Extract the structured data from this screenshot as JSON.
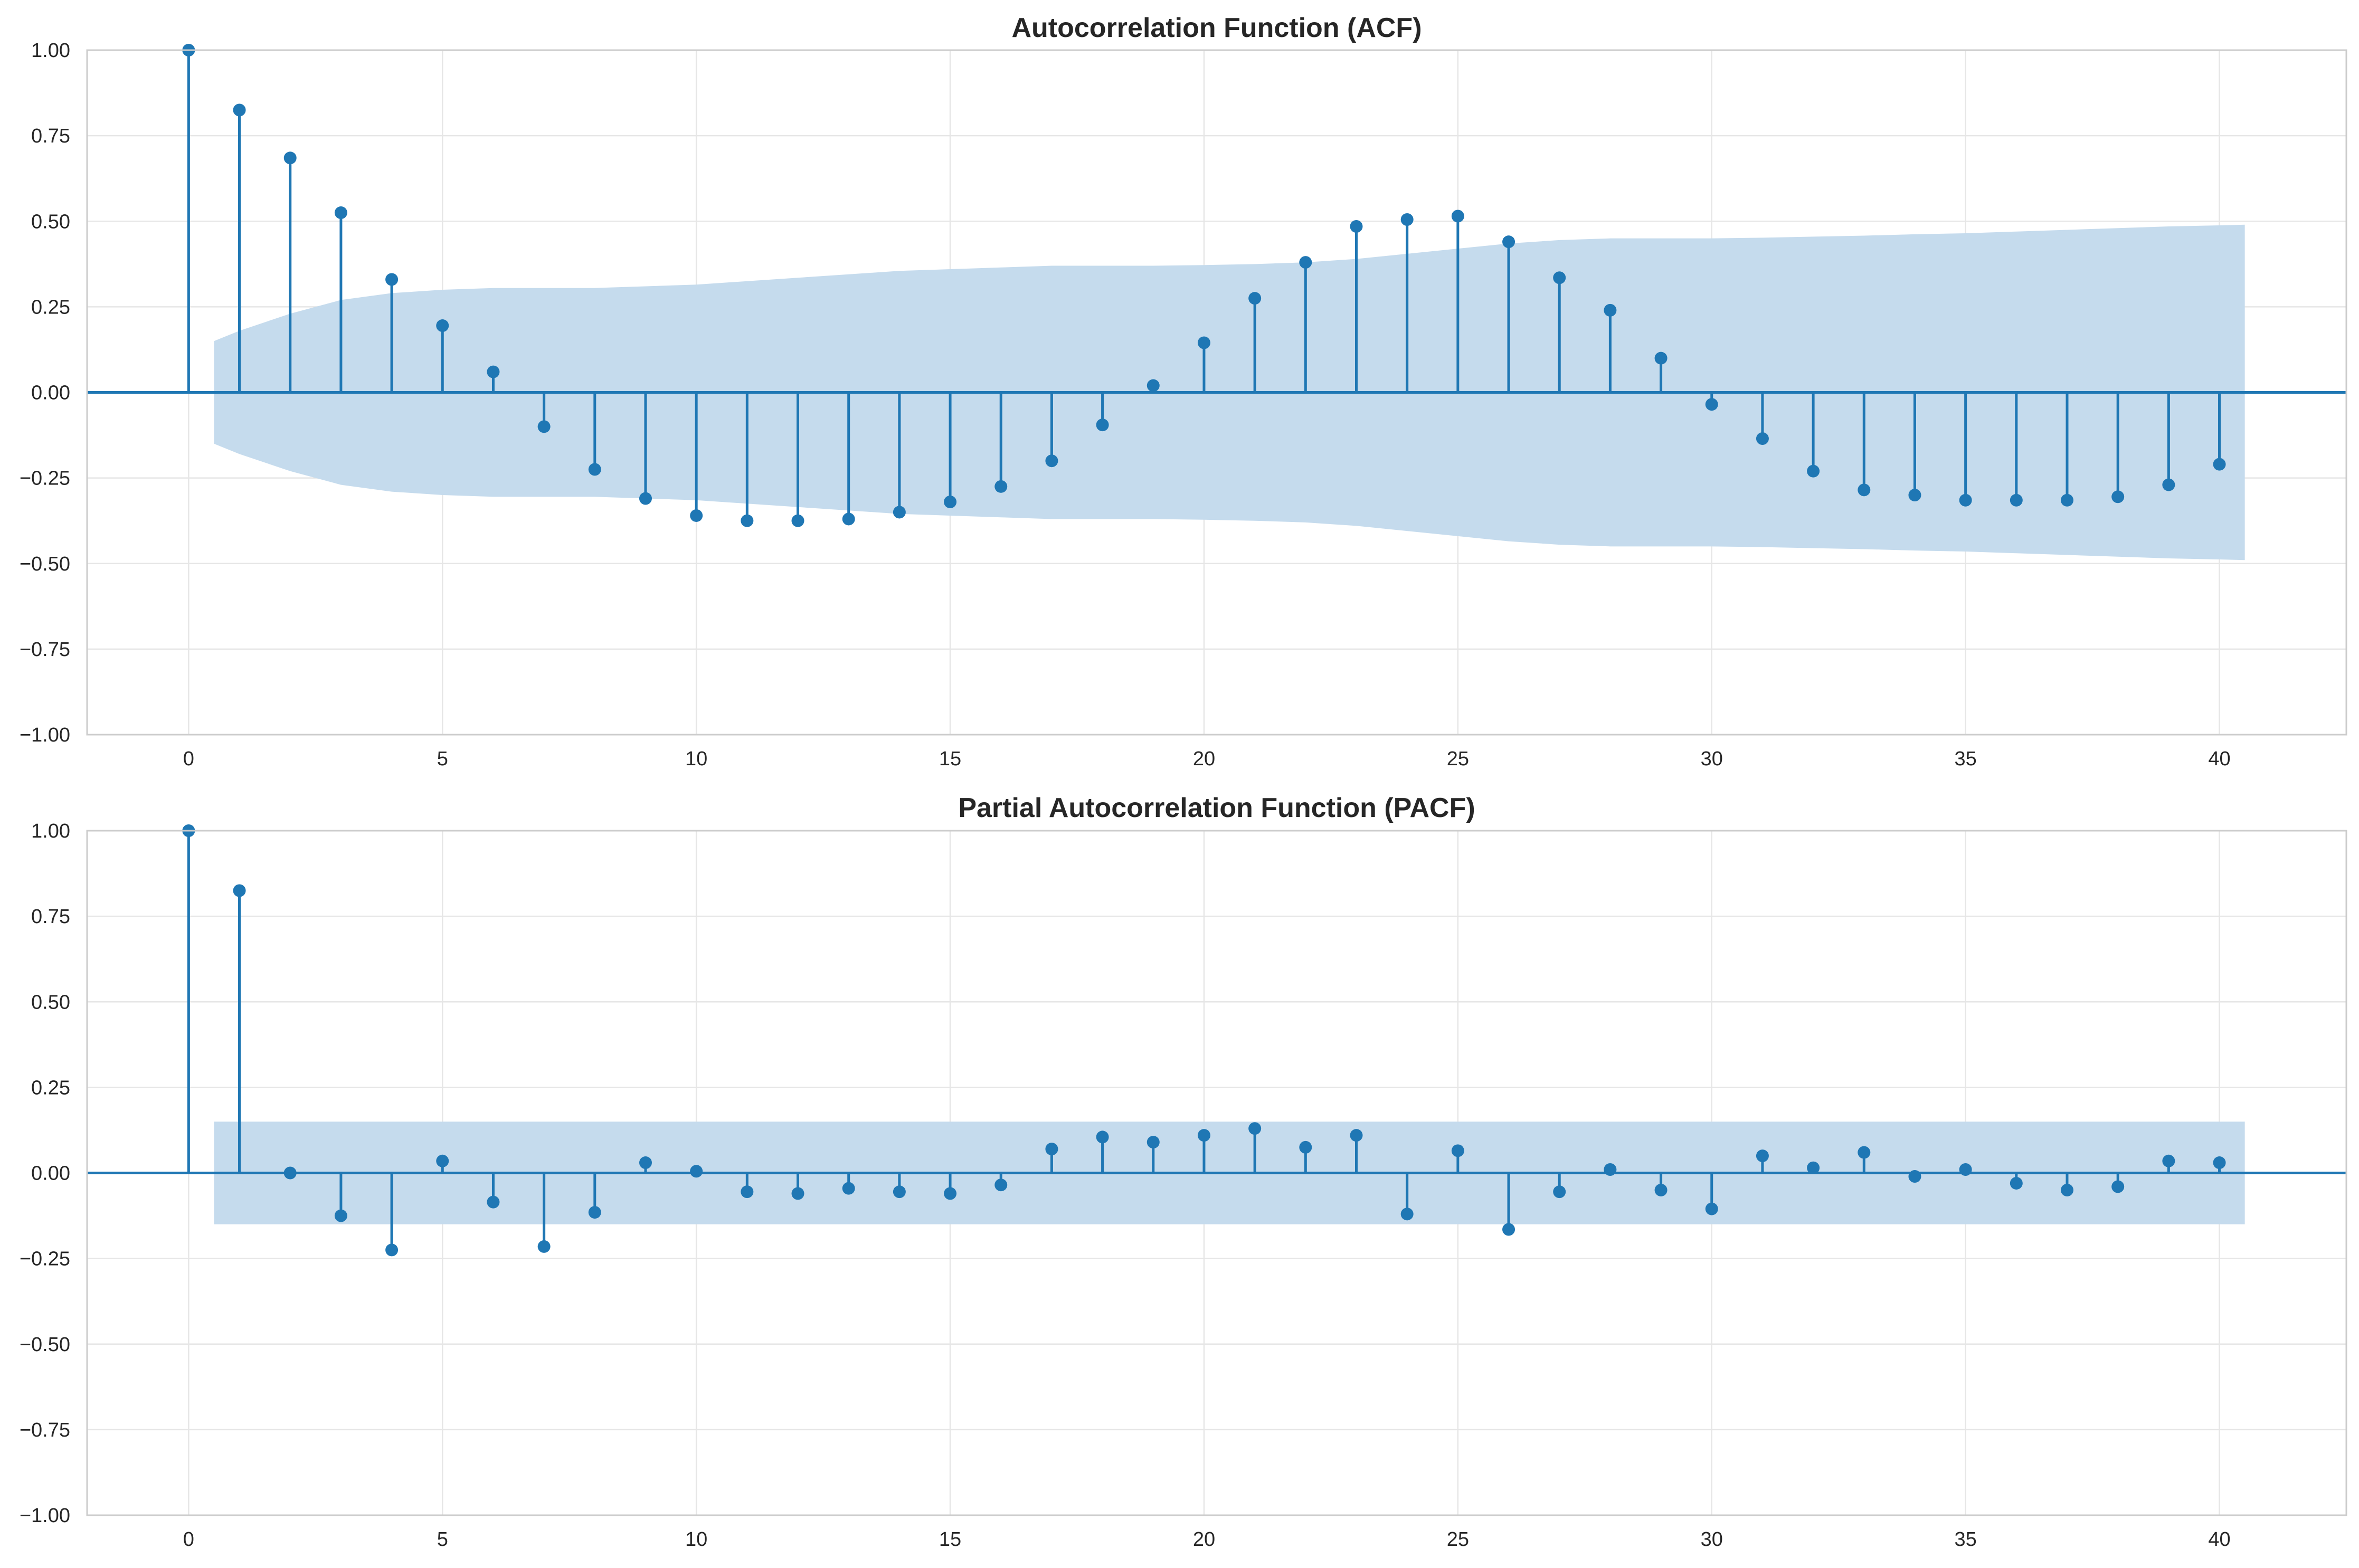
{
  "chart_data": [
    {
      "type": "stem",
      "title": "Autocorrelation Function (ACF)",
      "xlabel": "",
      "ylabel": "",
      "xlim": [
        -2,
        42.5
      ],
      "ylim": [
        -1.0,
        1.0
      ],
      "xticks": [
        0,
        5,
        10,
        15,
        20,
        25,
        30,
        35,
        40
      ],
      "xtick_labels": [
        "0",
        "5",
        "10",
        "15",
        "20",
        "25",
        "30",
        "35",
        "40"
      ],
      "yticks": [
        -1.0,
        -0.75,
        -0.5,
        -0.25,
        0.0,
        0.25,
        0.5,
        0.75,
        1.0
      ],
      "ytick_labels": [
        "−1.00",
        "−0.75",
        "−0.50",
        "−0.25",
        "0.00",
        "0.25",
        "0.50",
        "0.75",
        "1.00"
      ],
      "grid": true,
      "x": [
        0,
        1,
        2,
        3,
        4,
        5,
        6,
        7,
        8,
        9,
        10,
        11,
        12,
        13,
        14,
        15,
        16,
        17,
        18,
        19,
        20,
        21,
        22,
        23,
        24,
        25,
        26,
        27,
        28,
        29,
        30,
        31,
        32,
        33,
        34,
        35,
        36,
        37,
        38,
        39,
        40
      ],
      "values": [
        1.0,
        0.825,
        0.685,
        0.525,
        0.33,
        0.195,
        0.06,
        -0.1,
        -0.225,
        -0.31,
        -0.36,
        -0.375,
        -0.375,
        -0.37,
        -0.35,
        -0.32,
        -0.275,
        -0.2,
        -0.095,
        0.02,
        0.145,
        0.275,
        0.38,
        0.485,
        0.505,
        0.515,
        0.44,
        0.335,
        0.24,
        0.1,
        -0.035,
        -0.135,
        -0.23,
        -0.285,
        -0.3,
        -0.315,
        -0.315,
        -0.315,
        -0.305,
        -0.27,
        -0.21
      ],
      "confidence_band": {
        "x": [
          0.5,
          1,
          2,
          3,
          4,
          5,
          6,
          7,
          8,
          9,
          10,
          11,
          12,
          13,
          14,
          15,
          16,
          17,
          18,
          19,
          20,
          21,
          22,
          23,
          24,
          25,
          26,
          27,
          28,
          29,
          30,
          31,
          32,
          33,
          34,
          35,
          36,
          37,
          38,
          39,
          40,
          40.5
        ],
        "upper": [
          0.15,
          0.18,
          0.23,
          0.27,
          0.29,
          0.3,
          0.305,
          0.305,
          0.305,
          0.31,
          0.315,
          0.325,
          0.335,
          0.345,
          0.355,
          0.36,
          0.365,
          0.37,
          0.37,
          0.37,
          0.372,
          0.375,
          0.38,
          0.39,
          0.405,
          0.42,
          0.435,
          0.445,
          0.45,
          0.45,
          0.45,
          0.452,
          0.455,
          0.458,
          0.462,
          0.465,
          0.47,
          0.475,
          0.48,
          0.485,
          0.488,
          0.49
        ],
        "lower": [
          -0.15,
          -0.18,
          -0.23,
          -0.27,
          -0.29,
          -0.3,
          -0.305,
          -0.305,
          -0.305,
          -0.31,
          -0.315,
          -0.325,
          -0.335,
          -0.345,
          -0.355,
          -0.36,
          -0.365,
          -0.37,
          -0.37,
          -0.37,
          -0.372,
          -0.375,
          -0.38,
          -0.39,
          -0.405,
          -0.42,
          -0.435,
          -0.445,
          -0.45,
          -0.45,
          -0.45,
          -0.452,
          -0.455,
          -0.458,
          -0.462,
          -0.465,
          -0.47,
          -0.475,
          -0.48,
          -0.485,
          -0.488,
          -0.49
        ]
      },
      "colors": {
        "stem": "#1f77b4",
        "band": "#c5dbed"
      }
    },
    {
      "type": "stem",
      "title": "Partial Autocorrelation Function (PACF)",
      "xlabel": "",
      "ylabel": "",
      "xlim": [
        -2,
        42.5
      ],
      "ylim": [
        -1.0,
        1.0
      ],
      "xticks": [
        0,
        5,
        10,
        15,
        20,
        25,
        30,
        35,
        40
      ],
      "xtick_labels": [
        "0",
        "5",
        "10",
        "15",
        "20",
        "25",
        "30",
        "35",
        "40"
      ],
      "yticks": [
        -1.0,
        -0.75,
        -0.5,
        -0.25,
        0.0,
        0.25,
        0.5,
        0.75,
        1.0
      ],
      "ytick_labels": [
        "−1.00",
        "−0.75",
        "−0.50",
        "−0.25",
        "0.00",
        "0.25",
        "0.50",
        "0.75",
        "1.00"
      ],
      "grid": true,
      "x": [
        0,
        1,
        2,
        3,
        4,
        5,
        6,
        7,
        8,
        9,
        10,
        11,
        12,
        13,
        14,
        15,
        16,
        17,
        18,
        19,
        20,
        21,
        22,
        23,
        24,
        25,
        26,
        27,
        28,
        29,
        30,
        31,
        32,
        33,
        34,
        35,
        36,
        37,
        38,
        39,
        40
      ],
      "values": [
        1.0,
        0.825,
        0.0,
        -0.125,
        -0.225,
        0.035,
        -0.085,
        -0.215,
        -0.115,
        0.03,
        0.005,
        -0.055,
        -0.06,
        -0.045,
        -0.055,
        -0.06,
        -0.035,
        0.07,
        0.105,
        0.09,
        0.11,
        0.13,
        0.075,
        0.11,
        -0.12,
        0.065,
        -0.165,
        -0.055,
        0.01,
        -0.05,
        -0.105,
        0.05,
        0.015,
        0.06,
        -0.01,
        0.01,
        -0.03,
        -0.05,
        -0.04,
        0.035,
        0.03
      ],
      "confidence_band": {
        "x": [
          0.5,
          40.5
        ],
        "upper": [
          0.15,
          0.15
        ],
        "lower": [
          -0.15,
          -0.15
        ]
      },
      "colors": {
        "stem": "#1f77b4",
        "band": "#c5dbed"
      }
    }
  ]
}
